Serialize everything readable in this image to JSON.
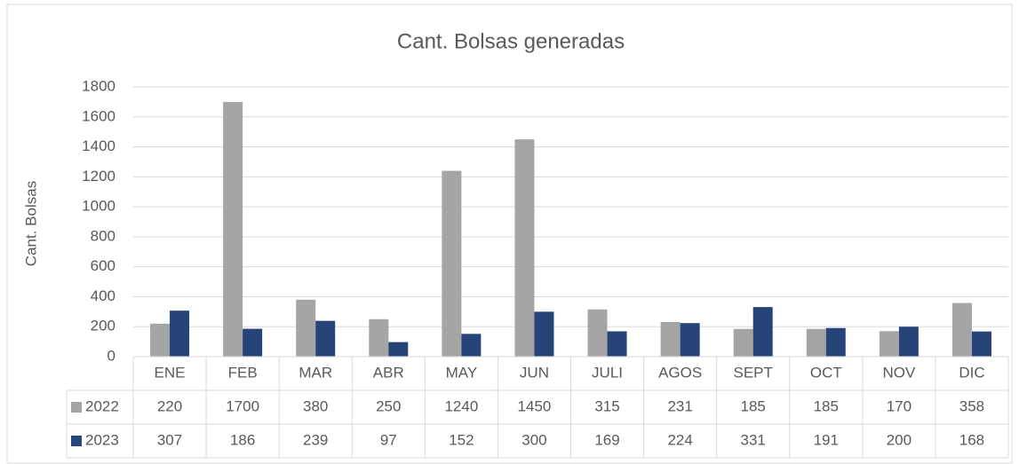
{
  "chart_data": {
    "type": "bar",
    "title": "Cant. Bolsas generadas",
    "y_label": "Cant. Bolsas",
    "categories": [
      "ENE",
      "FEB",
      "MAR",
      "ABR",
      "MAY",
      "JUN",
      "JULI",
      "AGOS",
      "SEPT",
      "OCT",
      "NOV",
      "DIC"
    ],
    "series": [
      {
        "name": "2022",
        "color": "#a5a5a5",
        "values": [
          220,
          1700,
          380,
          250,
          1240,
          1450,
          315,
          231,
          185,
          185,
          170,
          358
        ]
      },
      {
        "name": "2023",
        "color": "#264478",
        "values": [
          307,
          186,
          239,
          97,
          152,
          300,
          169,
          224,
          331,
          191,
          200,
          168
        ]
      }
    ],
    "ylim": [
      0,
      1800
    ],
    "yticks": [
      0,
      200,
      400,
      600,
      800,
      1000,
      1200,
      1400,
      1600,
      1800
    ],
    "grid": true,
    "data_table": true
  }
}
